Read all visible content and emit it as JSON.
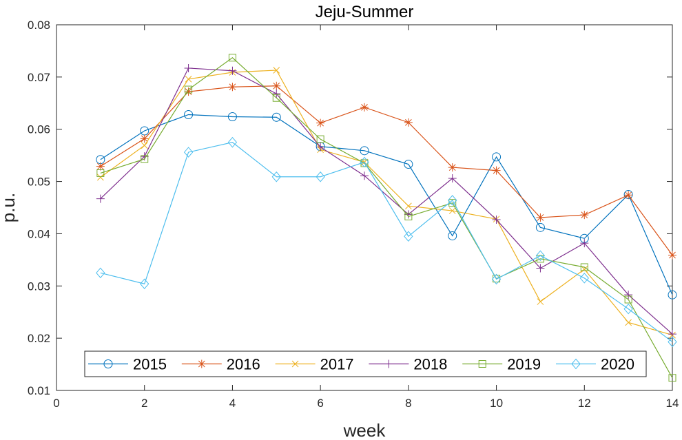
{
  "chart_data": {
    "type": "line",
    "title": "Jeju-Summer",
    "xlabel": "week",
    "ylabel": "p.u.",
    "xlim": [
      0,
      14
    ],
    "ylim": [
      0.01,
      0.08
    ],
    "xticks": [
      0,
      2,
      4,
      6,
      8,
      10,
      12,
      14
    ],
    "xtick_labels": [
      "0",
      "2",
      "4",
      "6",
      "8",
      "10",
      "12",
      "14"
    ],
    "yticks": [
      0.01,
      0.02,
      0.03,
      0.04,
      0.05,
      0.06,
      0.07,
      0.08
    ],
    "ytick_labels": [
      "0.01",
      "0.02",
      "0.03",
      "0.04",
      "0.05",
      "0.06",
      "0.07",
      "0.08"
    ],
    "grid": false,
    "legend_position": "bottom",
    "x": [
      1,
      2,
      3,
      4,
      5,
      6,
      7,
      8,
      9,
      10,
      11,
      12,
      13,
      14
    ],
    "series": [
      {
        "name": "2015",
        "color": "#0072BD",
        "marker": "circle",
        "values": [
          0.0542,
          0.0597,
          0.0628,
          0.0624,
          0.0623,
          0.0567,
          0.0559,
          0.0533,
          0.0396,
          0.0547,
          0.0412,
          0.0391,
          0.0475,
          0.0283
        ]
      },
      {
        "name": "2016",
        "color": "#D95319",
        "marker": "asterisk",
        "values": [
          0.0529,
          0.0582,
          0.0672,
          0.0681,
          0.0683,
          0.0612,
          0.0642,
          0.0613,
          0.0527,
          0.0521,
          0.0431,
          0.0436,
          0.0474,
          0.0359
        ]
      },
      {
        "name": "2017",
        "color": "#EDB120",
        "marker": "x",
        "values": [
          0.0508,
          0.0569,
          0.0696,
          0.0709,
          0.0713,
          0.0561,
          0.0537,
          0.0453,
          0.0444,
          0.0428,
          0.027,
          0.0332,
          0.023,
          0.0206
        ]
      },
      {
        "name": "2018",
        "color": "#7E2F8E",
        "marker": "plus",
        "values": [
          0.0467,
          0.0548,
          0.0717,
          0.0712,
          0.0668,
          0.0566,
          0.0511,
          0.0437,
          0.0506,
          0.0427,
          0.0334,
          0.0382,
          0.0283,
          0.0208
        ]
      },
      {
        "name": "2019",
        "color": "#77AC30",
        "marker": "square",
        "values": [
          0.0516,
          0.0543,
          0.0676,
          0.0737,
          0.066,
          0.0581,
          0.0535,
          0.0433,
          0.0459,
          0.0314,
          0.0352,
          0.0336,
          0.0274,
          0.0124
        ]
      },
      {
        "name": "2020",
        "color": "#4DBEEE",
        "marker": "diamond",
        "values": [
          0.0325,
          0.0304,
          0.0556,
          0.0575,
          0.0509,
          0.0509,
          0.0537,
          0.0395,
          0.0464,
          0.0313,
          0.0358,
          0.0315,
          0.0256,
          0.0193
        ]
      }
    ]
  }
}
